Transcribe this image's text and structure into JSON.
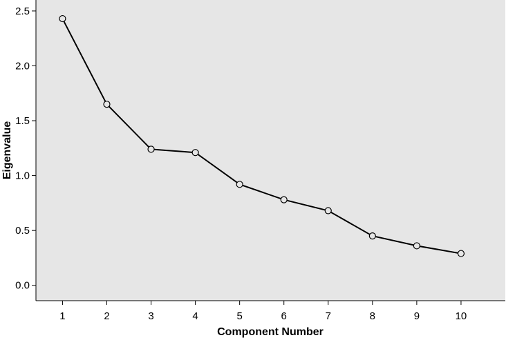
{
  "chart_data": {
    "type": "line",
    "title": "",
    "xlabel": "Component Number",
    "ylabel": "Eigenvalue",
    "x": [
      1,
      2,
      3,
      4,
      5,
      6,
      7,
      8,
      9,
      10
    ],
    "series": [
      {
        "values": [
          2.43,
          1.65,
          1.24,
          1.21,
          0.92,
          0.78,
          0.68,
          0.45,
          0.36,
          0.29
        ]
      }
    ],
    "xticks": [
      "1",
      "2",
      "3",
      "4",
      "5",
      "6",
      "7",
      "8",
      "9",
      "10"
    ],
    "yticks": [
      "0.0",
      "0.5",
      "1.0",
      "1.5",
      "2.0",
      "2.5"
    ],
    "ylim": [
      -0.14,
      2.6
    ],
    "xlim": [
      0.4,
      11.0
    ],
    "grid": false,
    "marker": "open-circle",
    "colors": {
      "plot_background": "#e6e6e6",
      "line": "#000000"
    }
  }
}
